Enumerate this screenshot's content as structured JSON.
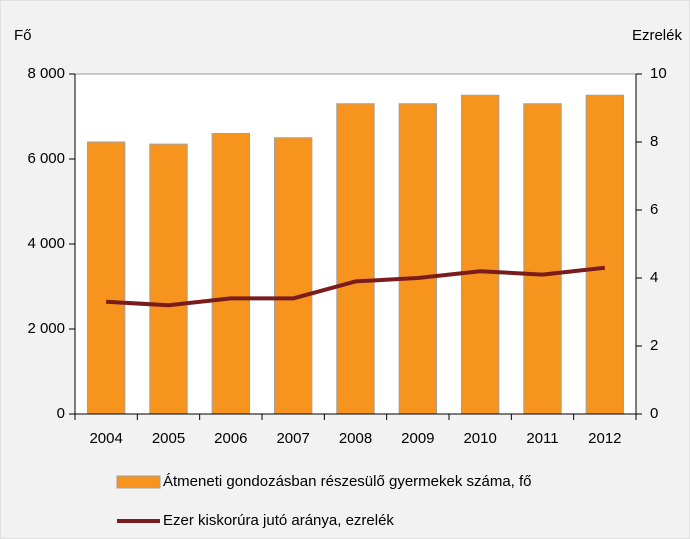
{
  "chart_data": {
    "type": "bar",
    "y_label": "Fő",
    "y2_label": "Ezrelék",
    "categories": [
      "2004",
      "2005",
      "2006",
      "2007",
      "2008",
      "2009",
      "2010",
      "2011",
      "2012"
    ],
    "series": [
      {
        "name": "Átmeneti gondozásban részesülő gyermekek száma, fő",
        "type": "bar",
        "color": "#f7941d",
        "values": [
          6400,
          6350,
          6600,
          6500,
          7300,
          7300,
          7500,
          7300,
          7500
        ]
      },
      {
        "name": "Ezer kiskorúra jutó aránya, ezrelék",
        "type": "line",
        "axis": "y2",
        "color": "#7b1c1c",
        "values": [
          3.3,
          3.2,
          3.4,
          3.4,
          3.9,
          4.0,
          4.2,
          4.1,
          4.3
        ]
      }
    ],
    "ylim": [
      0,
      8000
    ],
    "yticks": [
      0,
      {
        "value": 2000,
        "label": "2 000"
      },
      {
        "value": 4000,
        "label": "4 000"
      },
      {
        "value": 6000,
        "label": "6 000"
      },
      {
        "value": 8000,
        "label": "8 000"
      }
    ],
    "y2lim": [
      0,
      10
    ],
    "y2ticks": [
      0,
      2,
      4,
      6,
      8,
      10
    ],
    "grid": false,
    "legend": "bottom"
  }
}
